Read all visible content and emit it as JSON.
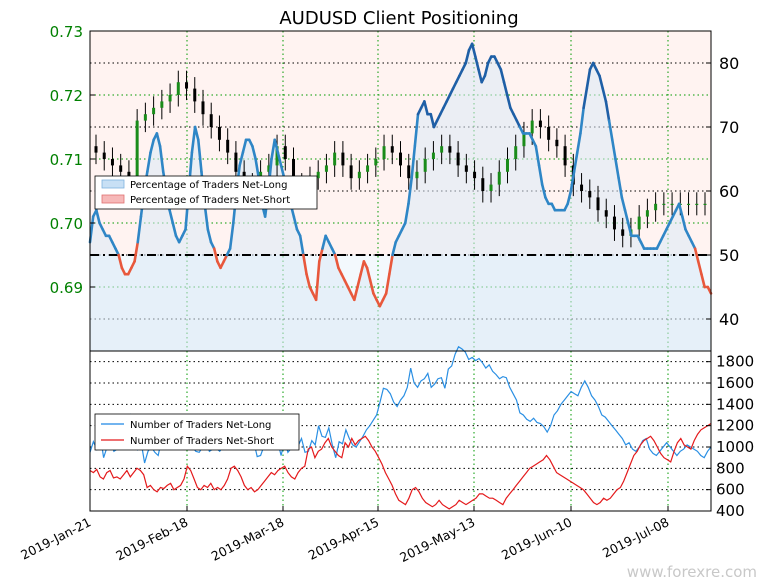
{
  "chart_data": [
    {
      "type": "candlestick",
      "title": "AUDUSD Client Positioning",
      "left_axis": {
        "ylim": [
          0.68,
          0.73
        ],
        "ticks": [
          "0.69",
          "0.70",
          "0.71",
          "0.72",
          "0.73"
        ],
        "color": "#008000"
      },
      "right_axis": {
        "ylim": [
          35,
          85
        ],
        "ticks": [
          "40",
          "50",
          "60",
          "70",
          "80"
        ]
      },
      "x_ticks": [
        "2019-Jan-21",
        "2019-Feb-18",
        "2019-Mar-18",
        "2019-Apr-15",
        "2019-May-13",
        "2019-Jun-10",
        "2019-Jul-08"
      ],
      "legend": {
        "position": "middle-left",
        "items": [
          {
            "label": "Percentage of Traders Net-Long",
            "color": "#1f77b4"
          },
          {
            "label": "Percentage of Traders Net-Short",
            "color": "#d62728"
          }
        ]
      },
      "reference_line": {
        "value": 50,
        "style": "dash-dot",
        "color": "#000000"
      },
      "grid": true,
      "percent_net_long": [
        52,
        56,
        57,
        55,
        54,
        53,
        53,
        52,
        51,
        50,
        48,
        47,
        47,
        48,
        49,
        52,
        56,
        60,
        63,
        66,
        68,
        69,
        67,
        63,
        60,
        57,
        55,
        53,
        52,
        53,
        54,
        60,
        66,
        70,
        68,
        63,
        58,
        54,
        52,
        51,
        49,
        48,
        49,
        50,
        51,
        55,
        60,
        64,
        66,
        68,
        68,
        67,
        65,
        62,
        58,
        56,
        60,
        65,
        68,
        66,
        64,
        62,
        60,
        58,
        56,
        54,
        53,
        50,
        47,
        45,
        44,
        43,
        49,
        51,
        53,
        52,
        51,
        50,
        48,
        47,
        46,
        45,
        44,
        43,
        45,
        47,
        49,
        48,
        46,
        44,
        43,
        42,
        43,
        44,
        47,
        50,
        52,
        53,
        54,
        55,
        58,
        62,
        67,
        72,
        73,
        74,
        72,
        72,
        70,
        71,
        72,
        73,
        74,
        75,
        76,
        77,
        78,
        79,
        80,
        82,
        83,
        81,
        79,
        77,
        78,
        80,
        81,
        81,
        80,
        79,
        77,
        75,
        73,
        72,
        71,
        70,
        69,
        69,
        69,
        68,
        67,
        64,
        61,
        59,
        58,
        58,
        57,
        57,
        57,
        57,
        58,
        60,
        63,
        66,
        69,
        73,
        76,
        79,
        80,
        79,
        78,
        76,
        74,
        71,
        68,
        65,
        62,
        59,
        57,
        55,
        53,
        53,
        53,
        52,
        51,
        51,
        51,
        51,
        51,
        52,
        53,
        54,
        55,
        56,
        57,
        58,
        56,
        54,
        53,
        52,
        51,
        49,
        47,
        45,
        45,
        44
      ],
      "candles_open": [
        0.712,
        0.711,
        0.71,
        0.709,
        0.708,
        0.707,
        0.716,
        0.717,
        0.718,
        0.719,
        0.72,
        0.722,
        0.721,
        0.719,
        0.717,
        0.715,
        0.713,
        0.711,
        0.708,
        0.706,
        0.705,
        0.708,
        0.709,
        0.712,
        0.71,
        0.706,
        0.705,
        0.707,
        0.708,
        0.709,
        0.711,
        0.709,
        0.707,
        0.708,
        0.709,
        0.71,
        0.712,
        0.711,
        0.709,
        0.707,
        0.708,
        0.71,
        0.711,
        0.712,
        0.711,
        0.709,
        0.708,
        0.707,
        0.705,
        0.706,
        0.708,
        0.71,
        0.712,
        0.714,
        0.716,
        0.715,
        0.713,
        0.712,
        0.709,
        0.706,
        0.705,
        0.704,
        0.702,
        0.701,
        0.699,
        0.698,
        0.699,
        0.701,
        0.702,
        0.703,
        0.703,
        0.703,
        0.703,
        0.703,
        0.703
      ]
    },
    {
      "type": "line",
      "y_ticks": [
        "400",
        "600",
        "800",
        "1000",
        "1200",
        "1400",
        "1600",
        "1800"
      ],
      "ylim": [
        400,
        1900
      ],
      "legend": {
        "position": "middle-left",
        "items": [
          {
            "label": "Number of Traders Net-Long",
            "color": "#1e88e5"
          },
          {
            "label": "Number of Traders Net-Short",
            "color": "#e41a1c"
          }
        ]
      },
      "grid": true,
      "traders_net_long": [
        950,
        1050,
        980,
        1120,
        900,
        1000,
        1060,
        960,
        980,
        1000,
        1050,
        1150,
        1300,
        1240,
        980,
        1040,
        850,
        960,
        1000,
        950,
        920,
        1080,
        1010,
        1030,
        980,
        1020,
        1100,
        1060,
        1000,
        1150,
        1000,
        960,
        950,
        1000,
        1040,
        960,
        980,
        990,
        960,
        1000,
        1050,
        1100,
        1000,
        980,
        1000,
        1120,
        1180,
        1060,
        1050,
        910,
        920,
        1010,
        1090,
        1020,
        1060,
        1050,
        920,
        1060,
        950,
        990,
        1100,
        1010,
        1080,
        950,
        960,
        1060,
        1020,
        1200,
        1100,
        1090,
        1180,
        1020,
        900,
        1050,
        1030,
        1160,
        1080,
        1020,
        1000,
        1050,
        1100,
        1160,
        1200,
        1250,
        1300,
        1420,
        1550,
        1540,
        1500,
        1420,
        1380,
        1440,
        1480,
        1560,
        1740,
        1600,
        1560,
        1620,
        1640,
        1690,
        1560,
        1590,
        1640,
        1650,
        1550,
        1730,
        1760,
        1870,
        1940,
        1920,
        1890,
        1820,
        1840,
        1810,
        1830,
        1790,
        1740,
        1770,
        1710,
        1680,
        1640,
        1660,
        1650,
        1560,
        1500,
        1440,
        1320,
        1300,
        1260,
        1240,
        1270,
        1230,
        1220,
        1190,
        1140,
        1200,
        1300,
        1340,
        1400,
        1440,
        1480,
        1520,
        1500,
        1480,
        1560,
        1620,
        1560,
        1480,
        1440,
        1380,
        1300,
        1280,
        1240,
        1200,
        1160,
        1120,
        1080,
        1020,
        1040,
        980,
        960,
        1000,
        1060,
        1080,
        980,
        940,
        920,
        960,
        1000,
        1040,
        1000,
        960,
        920,
        960,
        980,
        1020,
        1000,
        980,
        960,
        920,
        900,
        960,
        1000
      ],
      "traders_net_short": [
        780,
        760,
        790,
        720,
        700,
        760,
        780,
        710,
        720,
        700,
        740,
        780,
        720,
        760,
        800,
        780,
        740,
        620,
        640,
        600,
        580,
        620,
        610,
        640,
        660,
        600,
        620,
        640,
        700,
        820,
        780,
        700,
        620,
        600,
        640,
        620,
        660,
        600,
        620,
        600,
        640,
        700,
        800,
        820,
        780,
        720,
        640,
        600,
        620,
        580,
        600,
        640,
        680,
        720,
        760,
        740,
        780,
        800,
        820,
        760,
        720,
        700,
        760,
        800,
        820,
        980,
        1000,
        900,
        960,
        980,
        1040,
        1080,
        1000,
        960,
        920,
        900,
        1040,
        1000,
        1080,
        1020,
        1060,
        1080,
        1100,
        1060,
        1000,
        960,
        900,
        840,
        760,
        700,
        640,
        560,
        500,
        480,
        460,
        520,
        600,
        620,
        580,
        520,
        480,
        460,
        440,
        460,
        500,
        460,
        440,
        420,
        440,
        460,
        500,
        480,
        460,
        480,
        500,
        520,
        560,
        560,
        540,
        520,
        520,
        500,
        480,
        460,
        520,
        560,
        600,
        640,
        680,
        720,
        760,
        800,
        820,
        840,
        860,
        880,
        920,
        880,
        820,
        760,
        740,
        720,
        700,
        680,
        660,
        640,
        620,
        600,
        560,
        520,
        480,
        460,
        480,
        520,
        500,
        520,
        560,
        600,
        620,
        680,
        760,
        840,
        920,
        960,
        1020,
        1060,
        1080,
        1100,
        1060,
        1000,
        940,
        900,
        880,
        860,
        960,
        1040,
        1080,
        1020,
        1000,
        980,
        1060,
        1120,
        1160,
        1180,
        1200,
        1220
      ]
    }
  ],
  "watermark": "www.forexre.com"
}
